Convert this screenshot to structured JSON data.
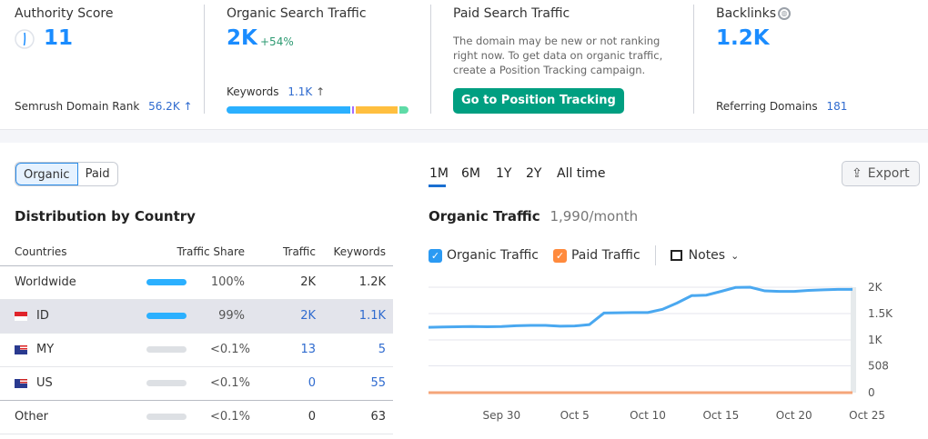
{
  "authority": {
    "title": "Authority Score",
    "value": "11",
    "rank_label": "Semrush Domain Rank",
    "rank_value": "56.2K",
    "rank_arrow": "↑"
  },
  "organic": {
    "title": "Organic Search Traffic",
    "value": "2K",
    "change": "+54%",
    "keywords_label": "Keywords",
    "keywords_value": "1.1K",
    "keywords_arrow": "↑",
    "distribution": [
      {
        "color": "#2bb0ff",
        "share": 70
      },
      {
        "color": "#a66bff",
        "share": 1
      },
      {
        "color": "#ffbf3f",
        "share": 24
      },
      {
        "color": "#5fdba7",
        "share": 5
      }
    ]
  },
  "paid": {
    "title": "Paid Search Traffic",
    "message": "The domain may be new or not ranking right now. To get data on organic traffic, create a Position Tracking campaign.",
    "button": "Go to Position Tracking"
  },
  "backlinks": {
    "title": "Backlinks",
    "value": "1.2K",
    "ref_label": "Referring Domains",
    "ref_value": "181",
    "icon": "globe-icon"
  },
  "toggle": {
    "organic": "Organic",
    "paid": "Paid",
    "selected": "Organic"
  },
  "distribution": {
    "title": "Distribution by Country",
    "headers": [
      "Countries",
      "Traffic Share",
      "Traffic",
      "Keywords"
    ],
    "rows": [
      {
        "country": "Worldwide",
        "flag": "",
        "share_pct": 100,
        "share": "100%",
        "traffic": "2K",
        "keywords": "1.2K"
      },
      {
        "country": "ID",
        "flag": "id",
        "share_pct": 99,
        "share": "99%",
        "traffic": "2K",
        "keywords": "1.1K"
      },
      {
        "country": "MY",
        "flag": "my",
        "share_pct": 0.1,
        "share": "<0.1%",
        "traffic": "13",
        "keywords": "5"
      },
      {
        "country": "US",
        "flag": "us",
        "share_pct": 0,
        "share": "<0.1%",
        "traffic": "0",
        "keywords": "55"
      },
      {
        "country": "Other",
        "flag": "",
        "share_pct": 0,
        "share": "<0.1%",
        "traffic": "0",
        "keywords": "63"
      }
    ]
  },
  "periods": [
    "1M",
    "6M",
    "1Y",
    "2Y",
    "All time"
  ],
  "selected_period": "1M",
  "export_label": "Export",
  "chart_header": {
    "title": "Organic Traffic",
    "value": "1,990/month"
  },
  "legend": {
    "organic": "Organic Traffic",
    "paid": "Paid Traffic",
    "notes": "Notes"
  },
  "colors": {
    "organic": "#4aa8f0",
    "paid": "#f5a57a",
    "accent": "#1a8cff",
    "button": "#009f81"
  },
  "chart_data": {
    "type": "line",
    "x": [
      "Sep 25",
      "Sep 26",
      "Sep 27",
      "Sep 28",
      "Sep 29",
      "Sep 30",
      "Oct 1",
      "Oct 2",
      "Oct 3",
      "Oct 4",
      "Oct 5",
      "Oct 6",
      "Oct 7",
      "Oct 8",
      "Oct 9",
      "Oct 10",
      "Oct 11",
      "Oct 12",
      "Oct 13",
      "Oct 14",
      "Oct 15",
      "Oct 16",
      "Oct 17",
      "Oct 18",
      "Oct 19",
      "Oct 20",
      "Oct 21",
      "Oct 22",
      "Oct 23",
      "Oct 24"
    ],
    "series": [
      {
        "name": "Organic Traffic",
        "values": [
          1240,
          1245,
          1250,
          1255,
          1250,
          1255,
          1270,
          1275,
          1275,
          1260,
          1265,
          1290,
          1510,
          1515,
          1520,
          1520,
          1580,
          1700,
          1840,
          1850,
          1920,
          1995,
          2000,
          1930,
          1920,
          1920,
          1940,
          1950,
          1960,
          1960
        ]
      },
      {
        "name": "Paid Traffic",
        "values": [
          0,
          0,
          0,
          0,
          0,
          0,
          0,
          0,
          0,
          0,
          0,
          0,
          0,
          0,
          0,
          0,
          0,
          0,
          0,
          0,
          0,
          0,
          0,
          0,
          0,
          0,
          0,
          0,
          0,
          0
        ]
      }
    ],
    "x_ticks": [
      "Sep 30",
      "Oct 5",
      "Oct 10",
      "Oct 15",
      "Oct 20",
      "Oct 25"
    ],
    "y_ticks": [
      {
        "value": 0,
        "label": "0"
      },
      {
        "value": 508,
        "label": "508"
      },
      {
        "value": 1000,
        "label": "1K"
      },
      {
        "value": 1500,
        "label": "1.5K"
      },
      {
        "value": 2000,
        "label": "2K"
      }
    ],
    "ylim": [
      0,
      2000
    ],
    "grid": true
  }
}
